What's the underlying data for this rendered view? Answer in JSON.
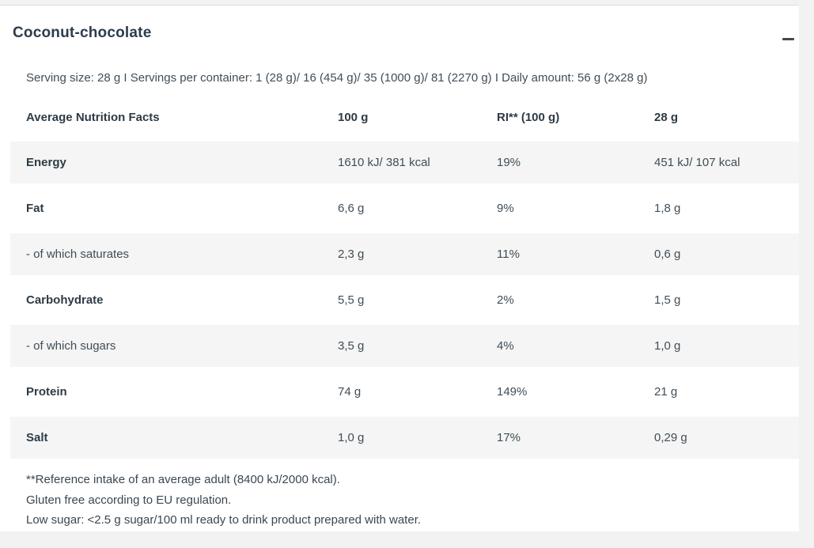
{
  "accordion": {
    "title": "Coconut-chocolate",
    "state": "expanded",
    "serving_info": "Serving size: 28 g I Servings per container: 1 (28 g)/ 16 (454 g)/ 35 (1000 g)/ 81 (2270 g) I Daily amount: 56 g (2x28 g)"
  },
  "table": {
    "columns": [
      "Average Nutrition Facts",
      "100 g",
      "RI** (100 g)",
      "28 g"
    ],
    "rows": [
      {
        "label": "Energy",
        "per_100g": "1610 kJ/ 381 kcal",
        "ri_100g": "19%",
        "per_28g": "451 kJ/ 107 kcal"
      },
      {
        "label": "Fat",
        "per_100g": "6,6 g",
        "ri_100g": "9%",
        "per_28g": "1,8 g"
      },
      {
        "label": "- of which saturates",
        "per_100g": "2,3 g",
        "ri_100g": "11%",
        "per_28g": "0,6 g"
      },
      {
        "label": "Carbohydrate",
        "per_100g": "5,5 g",
        "ri_100g": "2%",
        "per_28g": "1,5 g"
      },
      {
        "label": "- of which sugars",
        "per_100g": "3,5 g",
        "ri_100g": "4%",
        "per_28g": "1,0 g"
      },
      {
        "label": "Protein",
        "per_100g": "74 g",
        "ri_100g": "149%",
        "per_28g": "21 g"
      },
      {
        "label": "Salt",
        "per_100g": "1,0 g",
        "ri_100g": "17%",
        "per_28g": "0,29 g"
      }
    ]
  },
  "notes": [
    "**Reference intake of an average adult (8400 kJ/2000 kcal).",
    "Gluten free according to EU regulation.",
    "Low sugar: <2.5 g sugar/100 ml ready to drink product prepared with water."
  ],
  "colors": {
    "page_bg": "#f1f2f1",
    "card_bg": "#ffffff",
    "row_shade": "#f4f5f4",
    "title_text": "#2b3c4d",
    "body_text": "#414d57",
    "icon": "#42494e"
  }
}
